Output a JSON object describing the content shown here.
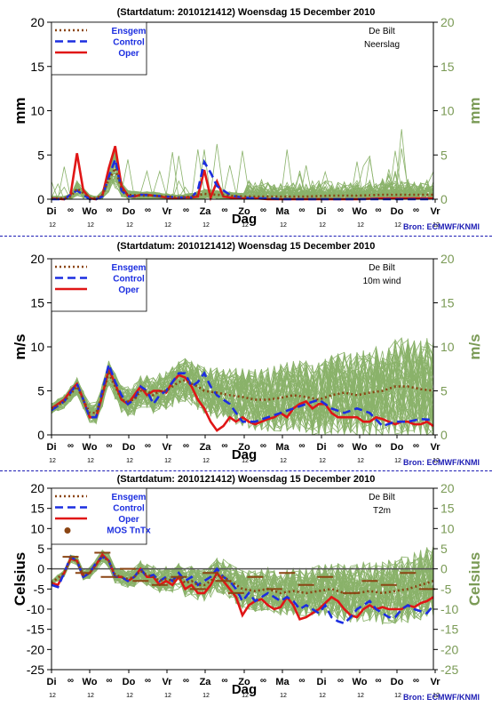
{
  "chart_data": [
    {
      "type": "line",
      "title": "(Startdatum: 2010121412)   Woensdag  15 December  2010",
      "xlabel": "Dag",
      "ylabel": "mm",
      "ylabel_right": "mm",
      "station": "De Bilt",
      "variable": "Neerslag",
      "source": "Bron: ECMWF/KNMI",
      "ylim": [
        0,
        20
      ],
      "yticks": [
        0,
        5,
        10,
        15,
        20
      ],
      "xlim": [
        0,
        60
      ],
      "day_labels": [
        "Di",
        "Wo",
        "Do",
        "Vr",
        "Za",
        "Zo",
        "Ma",
        "Di",
        "Wo",
        "Do",
        "Vr"
      ],
      "hour_labels": [
        "12",
        "12",
        "12",
        "12",
        "12",
        "12",
        "12",
        "12",
        "12",
        "12",
        "12"
      ],
      "night_marker": "∞",
      "grid": false,
      "legend_position": "top-left",
      "legend": [
        "Ensgem",
        "Control",
        "Oper"
      ],
      "colors": {
        "members": "#8ab26a",
        "ensgem": "#8b4513",
        "control": "#1c2ee0",
        "oper": "#e01616",
        "axis": "#000000"
      },
      "ensemble_members": 50,
      "series": [
        {
          "name": "Oper",
          "x": [
            0,
            2,
            3,
            4,
            5,
            6,
            7,
            8,
            9,
            10,
            11,
            12,
            13,
            14,
            15,
            16,
            17,
            18,
            19,
            20,
            21,
            22,
            23,
            24,
            25,
            26,
            27,
            28,
            29,
            30,
            32,
            34,
            36,
            38,
            40,
            44,
            48,
            52,
            56,
            60
          ],
          "values": [
            0.1,
            0,
            0.5,
            5.2,
            1,
            0.1,
            0,
            0.4,
            3.5,
            6,
            1.5,
            0.4,
            0.3,
            0.5,
            0.5,
            0.4,
            0.3,
            0.2,
            0.1,
            0.1,
            0.2,
            0.2,
            0.3,
            3.3,
            0.2,
            2,
            0.3,
            0.2,
            0.1,
            0.1,
            0.1,
            0,
            0,
            0,
            0,
            0,
            0,
            0.1,
            0.1,
            0.1
          ]
        },
        {
          "name": "Control",
          "x": [
            0,
            2,
            3,
            4,
            5,
            6,
            7,
            8,
            9,
            10,
            11,
            12,
            14,
            16,
            18,
            20,
            22,
            23,
            24,
            25,
            26,
            27,
            28,
            29,
            30,
            32,
            34,
            36,
            40,
            44,
            48,
            52,
            56,
            60
          ],
          "values": [
            0,
            0,
            0.5,
            1,
            0.5,
            0,
            0,
            0.3,
            2.5,
            4.5,
            1,
            0.3,
            0.5,
            0.4,
            0.3,
            0.2,
            0.2,
            1,
            4.2,
            3,
            1.5,
            1,
            0.5,
            0.3,
            0.2,
            0.1,
            0.1,
            0,
            0,
            0,
            0,
            0,
            0,
            0
          ]
        },
        {
          "name": "Ensgem",
          "x": [
            0,
            2,
            3,
            4,
            5,
            6,
            7,
            8,
            9,
            10,
            11,
            12,
            14,
            16,
            18,
            20,
            22,
            24,
            26,
            28,
            30,
            32,
            34,
            36,
            40,
            44,
            48,
            52,
            56,
            60
          ],
          "values": [
            0.1,
            0.1,
            0.3,
            1.2,
            0.7,
            0.2,
            0.1,
            0.5,
            2.2,
            3.5,
            1.2,
            0.5,
            0.4,
            0.4,
            0.3,
            0.2,
            0.3,
            0.6,
            0.5,
            0.4,
            0.3,
            0.3,
            0.3,
            0.3,
            0.3,
            0.4,
            0.4,
            0.5,
            0.5,
            0.5
          ]
        }
      ]
    },
    {
      "type": "line",
      "title": "(Startdatum: 2010121412)   Woensdag  15 December  2010",
      "xlabel": "Dag",
      "ylabel": "m/s",
      "ylabel_right": "m/s",
      "station": "De Bilt",
      "variable": "10m wind",
      "source": "Bron: ECMWF/KNMI",
      "ylim": [
        0,
        20
      ],
      "yticks": [
        0,
        5,
        10,
        15,
        20
      ],
      "xlim": [
        0,
        60
      ],
      "day_labels": [
        "Di",
        "Wo",
        "Do",
        "Vr",
        "Za",
        "Zo",
        "Ma",
        "Di",
        "Wo",
        "Do",
        "Vr"
      ],
      "hour_labels": [
        "12",
        "12",
        "12",
        "12",
        "12",
        "12",
        "12",
        "12",
        "12",
        "12",
        "12"
      ],
      "night_marker": "∞",
      "grid": false,
      "legend_position": "top-left",
      "legend": [
        "Ensgem",
        "Control",
        "Oper"
      ],
      "colors": {
        "members": "#8ab26a",
        "ensgem": "#8b4513",
        "control": "#1c2ee0",
        "oper": "#e01616",
        "axis": "#000000"
      },
      "ensemble_members": 50,
      "series": [
        {
          "name": "Oper",
          "x": [
            0,
            1,
            2,
            3,
            4,
            5,
            6,
            7,
            8,
            9,
            10,
            11,
            12,
            13,
            14,
            15,
            16,
            17,
            18,
            19,
            20,
            21,
            22,
            23,
            24,
            25,
            26,
            27,
            28,
            29,
            30,
            31,
            32,
            33,
            34,
            35,
            36,
            37,
            38,
            39,
            40,
            41,
            42,
            43,
            44,
            45,
            46,
            47,
            48,
            49,
            50,
            51,
            52,
            53,
            54,
            55,
            56,
            57,
            58,
            59,
            60
          ],
          "values": [
            3,
            3.5,
            4,
            5,
            5.8,
            4,
            2,
            2,
            4.5,
            7.5,
            5.8,
            4,
            3.5,
            4.5,
            5.5,
            4.5,
            5,
            5,
            4.8,
            6,
            6.8,
            6.5,
            5.5,
            4,
            3,
            1.5,
            0.5,
            1,
            2,
            1.5,
            2,
            1.5,
            1.2,
            1.5,
            1.8,
            2,
            2.5,
            2,
            3,
            3.5,
            3.8,
            3,
            3.5,
            3.5,
            2.5,
            2,
            2,
            2,
            2,
            1.5,
            1.5,
            2,
            1.8,
            1.5,
            1.2,
            1.5,
            1.5,
            1.2,
            1.2,
            1.5,
            1
          ]
        },
        {
          "name": "Control",
          "x": [
            0,
            2,
            4,
            5,
            6,
            7,
            8,
            9,
            10,
            11,
            12,
            13,
            14,
            15,
            16,
            17,
            18,
            19,
            20,
            21,
            22,
            23,
            24,
            25,
            26,
            27,
            28,
            29,
            30,
            32,
            34,
            36,
            38,
            40,
            42,
            44,
            46,
            48,
            50,
            52,
            54,
            56,
            58,
            60
          ],
          "values": [
            2.8,
            3.8,
            5.8,
            4,
            2,
            2,
            5,
            8,
            6,
            4.5,
            3.5,
            4,
            5.5,
            5,
            3.5,
            4.5,
            5,
            6,
            7,
            7,
            5.5,
            6,
            7,
            5.5,
            4.5,
            4,
            3.5,
            2.5,
            1.5,
            1.5,
            2,
            2.5,
            3,
            3.5,
            4,
            3,
            2.5,
            3,
            2.5,
            1,
            1.5,
            1.5,
            1.8,
            1.7
          ]
        },
        {
          "name": "Ensgem",
          "x": [
            0,
            2,
            4,
            5,
            6,
            7,
            8,
            9,
            10,
            11,
            12,
            13,
            14,
            15,
            16,
            17,
            18,
            19,
            20,
            21,
            22,
            23,
            24,
            26,
            28,
            30,
            32,
            34,
            36,
            38,
            40,
            42,
            44,
            46,
            48,
            50,
            52,
            54,
            56,
            58,
            60
          ],
          "values": [
            3,
            3.8,
            5.5,
            4,
            2.5,
            2.5,
            4.5,
            7,
            5.5,
            4,
            3.8,
            4,
            5,
            5,
            4.5,
            5,
            5,
            5.5,
            6,
            6.2,
            5.8,
            5.5,
            5,
            4.8,
            4.5,
            4.3,
            4,
            4,
            4.2,
            4.5,
            4.3,
            4,
            4.5,
            4.8,
            4.5,
            4.8,
            5,
            5.5,
            5.5,
            5.2,
            5
          ]
        }
      ]
    },
    {
      "type": "line",
      "title": "(Startdatum: 2010121412)   Woensdag  15 December  2010",
      "xlabel": "Dag",
      "ylabel": "Celsius",
      "ylabel_right": "Celsius",
      "station": "De Bilt",
      "variable": "T2m",
      "source": "Bron: ECMWF/KNMI",
      "ylim": [
        -25,
        20
      ],
      "yticks": [
        -25,
        -20,
        -15,
        -10,
        -5,
        0,
        5,
        10,
        15,
        20
      ],
      "xlim": [
        0,
        60
      ],
      "day_labels": [
        "Di",
        "Wo",
        "Do",
        "Vr",
        "Za",
        "Zo",
        "Ma",
        "Di",
        "Wo",
        "Do",
        "Vr"
      ],
      "hour_labels": [
        "12",
        "12",
        "12",
        "12",
        "12",
        "12",
        "12",
        "12",
        "12",
        "12",
        "12"
      ],
      "night_marker": "∞",
      "grid": false,
      "legend_position": "top-left",
      "legend": [
        "Ensgem",
        "Control",
        "Oper",
        "MOS TnTx"
      ],
      "colors": {
        "members": "#8ab26a",
        "ensgem": "#8b4513",
        "control": "#1c2ee0",
        "oper": "#e01616",
        "axis": "#000000",
        "mos": "#8b4513"
      },
      "ensemble_members": 50,
      "series": [
        {
          "name": "Oper",
          "x": [
            0,
            1,
            2,
            3,
            4,
            5,
            6,
            7,
            8,
            9,
            10,
            11,
            12,
            13,
            14,
            15,
            16,
            17,
            18,
            19,
            20,
            21,
            22,
            23,
            24,
            25,
            26,
            27,
            28,
            29,
            30,
            31,
            32,
            33,
            34,
            35,
            36,
            37,
            38,
            39,
            40,
            41,
            42,
            43,
            44,
            45,
            46,
            47,
            48,
            49,
            50,
            51,
            52,
            53,
            54,
            55,
            56,
            57,
            58,
            59,
            60
          ],
          "values": [
            -3.5,
            -4,
            -1,
            2.5,
            2,
            -2,
            -1,
            1,
            3.5,
            2,
            -2,
            -2,
            -3,
            -2,
            0,
            -2,
            -2,
            -4,
            -3,
            -4,
            -2,
            -5,
            -4,
            -6,
            -6,
            -4,
            -1,
            -3,
            -5,
            -7,
            -11.5,
            -9,
            -8,
            -7.5,
            -9,
            -10,
            -9.5,
            -7,
            -9,
            -12.5,
            -12,
            -11,
            -10,
            -8.5,
            -7,
            -8,
            -10,
            -11.5,
            -12,
            -10,
            -9,
            -10,
            -9.5,
            -10,
            -10,
            -10,
            -9,
            -9.5,
            -8.5,
            -8,
            -7
          ]
        },
        {
          "name": "Control",
          "x": [
            0,
            1,
            2,
            3,
            4,
            5,
            6,
            7,
            8,
            9,
            10,
            11,
            12,
            13,
            14,
            15,
            16,
            17,
            18,
            19,
            20,
            21,
            22,
            23,
            24,
            25,
            26,
            27,
            28,
            29,
            30,
            31,
            32,
            33,
            34,
            35,
            36,
            37,
            38,
            39,
            40,
            41,
            42,
            43,
            44,
            45,
            46,
            47,
            48,
            49,
            50,
            51,
            52,
            53,
            54,
            55,
            56,
            57,
            58,
            59,
            60
          ],
          "values": [
            -4,
            -4.5,
            -1,
            3,
            2,
            -2,
            -1,
            1.5,
            3,
            2,
            -2,
            -2,
            -3,
            -2,
            0,
            -2,
            -1.5,
            -3,
            -2,
            -3,
            -1,
            -3,
            -2,
            -4,
            -3,
            -2,
            0,
            -2,
            -3,
            -5,
            -8,
            -6,
            -8,
            -7,
            -6,
            -7,
            -8,
            -7,
            -8,
            -10,
            -9,
            -10,
            -11,
            -9,
            -12,
            -13,
            -13.5,
            -12,
            -10,
            -9,
            -8,
            -10,
            -11,
            -12,
            -12,
            -10,
            -9,
            -10,
            -10.5,
            -11,
            -9
          ]
        },
        {
          "name": "Ensgem",
          "x": [
            0,
            2,
            3,
            4,
            5,
            6,
            7,
            8,
            9,
            10,
            11,
            12,
            13,
            14,
            15,
            16,
            17,
            18,
            19,
            20,
            21,
            22,
            23,
            24,
            25,
            26,
            27,
            28,
            30,
            32,
            34,
            36,
            38,
            40,
            42,
            44,
            46,
            48,
            50,
            52,
            54,
            56,
            58,
            60
          ],
          "values": [
            -3.5,
            -1,
            2.5,
            2,
            -1.5,
            -1,
            1,
            3,
            2,
            -1.5,
            -2,
            -2.5,
            -2,
            -0.5,
            -1.5,
            -2,
            -3,
            -2.5,
            -3,
            -2,
            -3.5,
            -3,
            -4,
            -4,
            -3,
            -1.5,
            -2,
            -3,
            -5,
            -5.5,
            -5,
            -6,
            -5.5,
            -6,
            -5.5,
            -5,
            -6,
            -6,
            -5.5,
            -6,
            -5.5,
            -5,
            -4,
            -3
          ]
        },
        {
          "name": "MOS TnTx",
          "x": [
            3,
            5,
            8,
            9,
            12,
            14,
            17,
            20,
            23,
            25,
            27,
            29,
            32,
            35,
            37,
            40,
            43,
            47,
            50,
            53,
            56,
            59
          ],
          "values": [
            3,
            -1,
            4,
            -2,
            0,
            -3,
            -4,
            -2,
            -5,
            -1,
            -3,
            -6,
            -2,
            -5,
            -1,
            -4,
            -2,
            -6,
            -3,
            -4,
            -1,
            -5
          ]
        }
      ]
    }
  ]
}
